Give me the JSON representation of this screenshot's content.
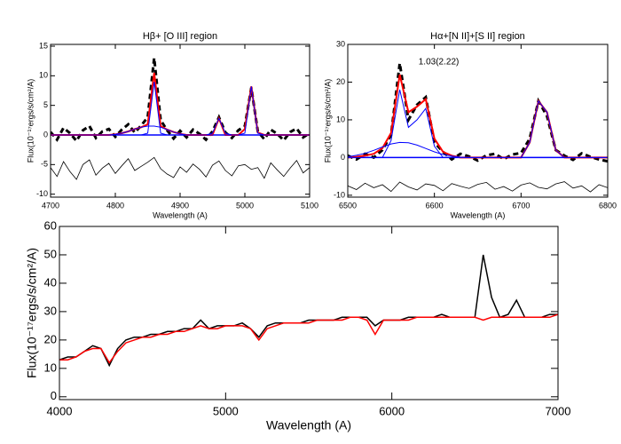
{
  "chart_data": [
    {
      "type": "line",
      "title": "Hβ+ [O III] region",
      "xlabel": "Wavelength (A)",
      "ylabel": "Flux(10⁻¹⁷ergs/s/cm²/A)",
      "xlim": [
        4700,
        5100
      ],
      "ylim": [
        -10.5,
        15.3
      ],
      "xticks": [
        4700,
        4800,
        4900,
        5000,
        5100
      ],
      "yticks": [
        -10,
        -5,
        0,
        5,
        10,
        15
      ],
      "hline": 0,
      "hline_color": "#0000ff",
      "x": [
        4700,
        4710,
        4720,
        4730,
        4740,
        4750,
        4760,
        4770,
        4780,
        4790,
        4800,
        4810,
        4820,
        4830,
        4840,
        4850,
        4860,
        4870,
        4880,
        4890,
        4900,
        4910,
        4920,
        4930,
        4940,
        4950,
        4960,
        4970,
        4980,
        4990,
        5000,
        5010,
        5020,
        5030,
        5040,
        5050,
        5060,
        5070,
        5080,
        5090,
        5100
      ],
      "series": [
        {
          "color": "#000000",
          "style": "dashed",
          "width": 3,
          "values": [
            0.5,
            -0.8,
            1.2,
            0.3,
            -1.0,
            0.8,
            1.5,
            -0.5,
            0.6,
            1.0,
            -0.3,
            0.9,
            1.8,
            0.4,
            1.6,
            3.0,
            13.0,
            2.5,
            0.8,
            -0.6,
            0.7,
            -0.4,
            0.9,
            0.2,
            -0.8,
            0.6,
            3.0,
            0.4,
            -0.5,
            0.8,
            1.5,
            8.0,
            0.6,
            -0.7,
            0.9,
            0.2,
            -0.9,
            0.5,
            1.1,
            -0.4,
            0.3
          ]
        },
        {
          "color": "#ff0000",
          "style": "solid",
          "width": 2,
          "values": [
            0,
            0,
            0,
            0,
            0,
            0,
            0,
            0,
            0,
            0,
            0.1,
            0.3,
            0.6,
            1.0,
            1.3,
            1.8,
            10.5,
            1.5,
            0.9,
            0.5,
            0.2,
            0,
            0,
            0,
            0,
            0,
            2.8,
            0,
            0,
            0,
            1.0,
            8.2,
            0.4,
            0,
            0,
            0,
            0,
            0,
            0,
            0,
            0
          ]
        },
        {
          "color": "#0000ff",
          "style": "solid",
          "width": 1,
          "values": [
            0,
            0,
            0,
            0,
            0,
            0,
            0,
            0,
            0,
            0,
            0.1,
            0.3,
            0.6,
            1.0,
            1.3,
            1.5,
            1.5,
            1.3,
            0.9,
            0.5,
            0.2,
            0,
            0,
            0,
            0,
            0,
            0,
            0,
            0,
            0,
            0,
            0,
            0,
            0,
            0,
            0,
            0,
            0,
            0,
            0,
            0
          ]
        },
        {
          "color": "#0000ff",
          "style": "solid",
          "width": 1,
          "values": [
            0,
            0,
            0,
            0,
            0,
            0,
            0,
            0,
            0,
            0,
            0,
            0,
            0,
            0,
            0,
            0.3,
            9.0,
            0.3,
            0,
            0,
            0,
            0,
            0,
            0,
            0,
            0.3,
            2.8,
            0.3,
            0,
            0,
            0.3,
            8.2,
            0.3,
            0,
            0,
            0,
            0,
            0,
            0,
            0,
            0
          ]
        },
        {
          "color": "#000000",
          "style": "solid",
          "width": 0.8,
          "values": [
            -5.5,
            -7.0,
            -4.5,
            -6.2,
            -7.5,
            -5.0,
            -4.2,
            -6.8,
            -5.6,
            -4.8,
            -6.5,
            -5.2,
            -4.0,
            -6.0,
            -5.3,
            -4.6,
            -3.8,
            -5.7,
            -6.6,
            -7.2,
            -5.4,
            -6.3,
            -4.9,
            -5.8,
            -7.1,
            -5.1,
            -4.4,
            -6.0,
            -6.9,
            -5.2,
            -5.0,
            -5.8,
            -5.5,
            -7.3,
            -4.7,
            -5.9,
            -7.0,
            -5.6,
            -4.3,
            -6.4,
            -5.5
          ]
        }
      ]
    },
    {
      "type": "line",
      "title": "Hα+[N II]+[S II] region",
      "xlabel": "Wavelength (A)",
      "ylabel": "Flux(10⁻¹⁷ergs/s/cm²/A)",
      "annotation": "1.03(2.22)",
      "xlim": [
        6500,
        6800
      ],
      "ylim": [
        -10.5,
        30
      ],
      "xticks": [
        6500,
        6600,
        6700,
        6800
      ],
      "yticks": [
        -10,
        0,
        10,
        20,
        30
      ],
      "hline": 0,
      "hline_color": "#0000ff",
      "x": [
        6500,
        6510,
        6520,
        6530,
        6540,
        6550,
        6560,
        6570,
        6580,
        6590,
        6600,
        6610,
        6620,
        6630,
        6640,
        6650,
        6660,
        6670,
        6680,
        6690,
        6700,
        6710,
        6720,
        6730,
        6740,
        6750,
        6760,
        6770,
        6780,
        6790,
        6800
      ],
      "series": [
        {
          "color": "#000000",
          "style": "dashed",
          "width": 3,
          "values": [
            0.5,
            -0.5,
            1,
            0,
            2,
            6,
            25,
            10,
            14,
            16,
            4,
            1.5,
            -0.5,
            1,
            0.3,
            -0.8,
            0.6,
            1,
            -0.4,
            0.8,
            1.2,
            5,
            15,
            11,
            2,
            0.5,
            -0.6,
            1.1,
            0.2,
            -0.5,
            -1
          ]
        },
        {
          "color": "#ff0000",
          "style": "solid",
          "width": 2,
          "values": [
            0,
            0.2,
            0.5,
            1,
            2.5,
            6.5,
            22,
            12,
            13.5,
            15.5,
            5,
            1.5,
            0.5,
            0,
            0,
            0,
            0,
            0,
            0,
            0,
            0,
            4,
            15,
            12,
            2,
            0,
            0,
            0,
            0,
            0,
            0
          ]
        },
        {
          "color": "#0000ff",
          "style": "solid",
          "width": 1,
          "values": [
            0.2,
            0.6,
            1.1,
            1.9,
            2.8,
            3.6,
            4.0,
            3.9,
            3.3,
            2.4,
            1.5,
            0.8,
            0.4,
            0.1,
            0,
            0,
            0,
            0,
            0,
            0,
            0,
            0,
            0,
            0,
            0,
            0,
            0,
            0,
            0,
            0,
            0
          ]
        },
        {
          "color": "#0000ff",
          "style": "solid",
          "width": 1,
          "values": [
            0,
            0,
            0,
            0,
            0,
            4.5,
            18,
            8,
            10,
            13,
            3,
            0,
            0,
            0,
            0,
            0,
            0,
            0,
            0,
            0,
            0,
            4,
            15,
            12,
            2,
            0,
            0,
            0,
            0,
            0,
            0
          ]
        },
        {
          "color": "#000000",
          "style": "solid",
          "width": 0.8,
          "values": [
            -7.5,
            -8.5,
            -6.8,
            -8.0,
            -7.2,
            -9.0,
            -6.5,
            -7.8,
            -8.6,
            -7.0,
            -7.4,
            -8.8,
            -6.9,
            -7.6,
            -8.2,
            -7.1,
            -6.6,
            -8.4,
            -7.7,
            -8.9,
            -7.3,
            -6.7,
            -7.9,
            -8.3,
            -7.0,
            -6.4,
            -8.1,
            -7.5,
            -9.1,
            -7.2,
            -8.0
          ]
        }
      ]
    },
    {
      "type": "line",
      "xlabel": "Wavelength (A)",
      "ylabel": "Flux(10⁻¹⁷ergs/s/cm²/A)",
      "xlim": [
        4000,
        7000
      ],
      "ylim": [
        -1,
        60
      ],
      "xticks": [
        4000,
        5000,
        6000,
        7000
      ],
      "yticks": [
        0,
        10,
        20,
        30,
        40,
        50,
        60
      ],
      "x": [
        4000,
        4050,
        4100,
        4150,
        4200,
        4250,
        4300,
        4350,
        4400,
        4450,
        4500,
        4550,
        4600,
        4650,
        4700,
        4750,
        4800,
        4850,
        4900,
        4950,
        5000,
        5050,
        5100,
        5150,
        5200,
        5250,
        5300,
        5350,
        5400,
        5450,
        5500,
        5550,
        5600,
        5650,
        5700,
        5750,
        5800,
        5850,
        5900,
        5950,
        6000,
        6050,
        6100,
        6150,
        6200,
        6250,
        6300,
        6350,
        6400,
        6450,
        6500,
        6550,
        6600,
        6650,
        6700,
        6750,
        6800,
        6850,
        6900,
        6950,
        7000
      ],
      "series": [
        {
          "color": "#000000",
          "style": "solid",
          "width": 1.5,
          "values": [
            13,
            14,
            14,
            16,
            18,
            17,
            11,
            17,
            20,
            21,
            21,
            22,
            22,
            23,
            23,
            24,
            24,
            27,
            24,
            25,
            25,
            25,
            26,
            24,
            21,
            25,
            26,
            26,
            26,
            26,
            27,
            27,
            27,
            27,
            28,
            28,
            28,
            28,
            25,
            27,
            27,
            27,
            28,
            28,
            28,
            28,
            29,
            28,
            28,
            28,
            28,
            50,
            35,
            28,
            29,
            34,
            28,
            28,
            28,
            29,
            29
          ]
        },
        {
          "color": "#ff0000",
          "style": "solid",
          "width": 1.5,
          "values": [
            13,
            13,
            14,
            16,
            17,
            17,
            12,
            16,
            19,
            20,
            21,
            21,
            22,
            22,
            23,
            23,
            24,
            25,
            24,
            24,
            25,
            25,
            25,
            24,
            20,
            24,
            25,
            26,
            26,
            26,
            26,
            27,
            27,
            27,
            27,
            28,
            28,
            27,
            22,
            27,
            27,
            27,
            27,
            28,
            28,
            28,
            28,
            28,
            28,
            28,
            28,
            27,
            28,
            28,
            28,
            28,
            28,
            28,
            28,
            28,
            29
          ]
        }
      ]
    }
  ]
}
